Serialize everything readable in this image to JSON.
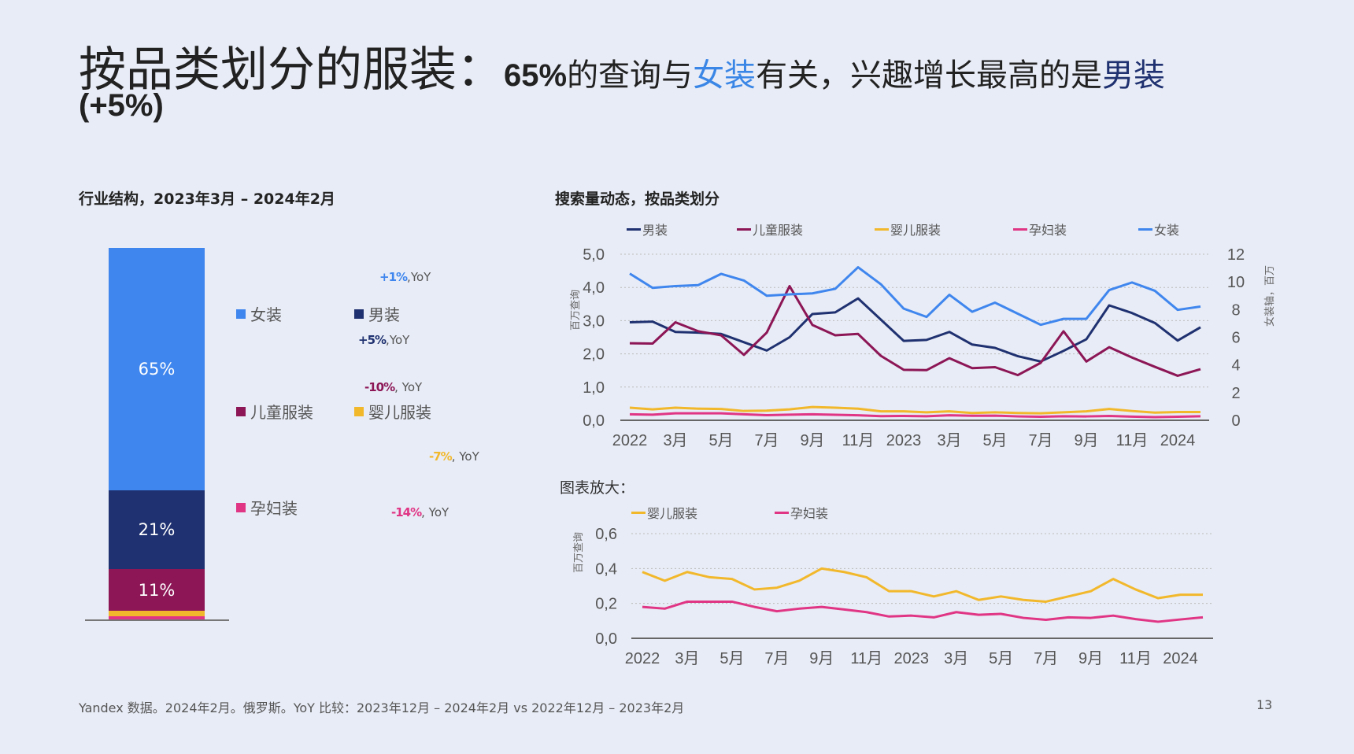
{
  "title": {
    "main": "按品类划分的服装：",
    "pct": "65%",
    "p1": "的查询与",
    "women": "女装",
    "p2": "有关，兴趣增长最高的是",
    "men": "男装",
    "growth": "(+5%)"
  },
  "left": {
    "subtitle": "行业结构，2023年3月 – 2024年2月"
  },
  "right": {
    "subtitle": "搜索量动态，按品类划分",
    "zoom_title": "图表放大："
  },
  "colors": {
    "women": "#3f86ee",
    "men": "#1f3170",
    "children": "#8c1656",
    "baby": "#f2b82c",
    "maternity": "#e03585"
  },
  "chart_data": [
    {
      "type": "bar",
      "stacked": true,
      "segments": [
        {
          "name": "女装",
          "value": 65,
          "label": "65%",
          "yoy_value": "+1%",
          "yoy_suffix": ",YoY"
        },
        {
          "name": "男装",
          "value": 21,
          "label": "21%",
          "yoy_value": "+5%",
          "yoy_suffix": ",YoY"
        },
        {
          "name": "儿童服装",
          "value": 11,
          "label": "11%",
          "yoy_value": "-10%",
          "yoy_suffix": ", YoY"
        },
        {
          "name": "婴儿服装",
          "value": 1.8,
          "label": "",
          "yoy_value": "-7%",
          "yoy_suffix": ", YoY"
        },
        {
          "name": "孕妇装",
          "value": 1.2,
          "label": "",
          "yoy_value": "-14%",
          "yoy_suffix": ", YoY"
        }
      ]
    },
    {
      "type": "line",
      "ylabel": "百万查询",
      "y2label": "女装轴，百万",
      "ylim": [
        0,
        5
      ],
      "yticks": [
        "0,0",
        "1,0",
        "2,0",
        "3,0",
        "4,0",
        "5,0"
      ],
      "y2lim": [
        0,
        12
      ],
      "y2ticks": [
        "0",
        "2",
        "4",
        "6",
        "8",
        "10",
        "12"
      ],
      "xticks": [
        "2022",
        "3月",
        "5月",
        "7月",
        "9月",
        "11月",
        "2023",
        "3月",
        "5月",
        "7月",
        "9月",
        "11月",
        "2024"
      ],
      "grid": true,
      "legend": "top",
      "series": [
        {
          "name": "男装",
          "axis": "left",
          "values": [
            2.95,
            2.97,
            2.66,
            2.64,
            2.6,
            2.35,
            2.1,
            2.5,
            3.2,
            3.25,
            3.67,
            3.03,
            2.39,
            2.42,
            2.66,
            2.28,
            2.18,
            1.93,
            1.77,
            2.09,
            2.44,
            3.46,
            3.23,
            2.93,
            2.4,
            2.8
          ]
        },
        {
          "name": "儿童服装",
          "axis": "left",
          "values": [
            2.32,
            2.31,
            2.95,
            2.68,
            2.56,
            1.97,
            2.64,
            4.04,
            2.87,
            2.56,
            2.6,
            1.94,
            1.52,
            1.51,
            1.87,
            1.57,
            1.6,
            1.36,
            1.73,
            2.68,
            1.77,
            2.2,
            1.89,
            1.61,
            1.34,
            1.54
          ]
        },
        {
          "name": "婴儿服装",
          "axis": "left",
          "values": [
            0.38,
            0.33,
            0.38,
            0.35,
            0.34,
            0.28,
            0.29,
            0.33,
            0.4,
            0.38,
            0.35,
            0.27,
            0.27,
            0.24,
            0.27,
            0.22,
            0.24,
            0.22,
            0.21,
            0.24,
            0.27,
            0.34,
            0.28,
            0.23,
            0.25,
            0.25
          ]
        },
        {
          "name": "孕妇装",
          "axis": "left",
          "values": [
            0.18,
            0.17,
            0.21,
            0.21,
            0.21,
            0.18,
            0.155,
            0.17,
            0.18,
            0.165,
            0.15,
            0.125,
            0.13,
            0.12,
            0.15,
            0.135,
            0.14,
            0.117,
            0.106,
            0.12,
            0.117,
            0.13,
            0.11,
            0.095,
            0.108,
            0.12
          ]
        },
        {
          "name": "女装",
          "axis": "right",
          "values": [
            10.6,
            9.57,
            9.7,
            9.77,
            10.58,
            10.1,
            9.0,
            9.1,
            9.17,
            9.5,
            11.06,
            9.83,
            8.07,
            7.47,
            9.07,
            7.84,
            8.5,
            7.7,
            6.9,
            7.33,
            7.33,
            9.41,
            9.96,
            9.36,
            7.98,
            8.22
          ]
        }
      ]
    },
    {
      "type": "line",
      "ylabel": "百万查询",
      "ylim": [
        0,
        0.6
      ],
      "yticks": [
        "0,0",
        "0,2",
        "0,4",
        "0,6"
      ],
      "xticks": [
        "2022",
        "3月",
        "5月",
        "7月",
        "9月",
        "11月",
        "2023",
        "3月",
        "5月",
        "7月",
        "9月",
        "11月",
        "2024"
      ],
      "grid": true,
      "legend": "top",
      "series": [
        {
          "name": "婴儿服装",
          "values": [
            0.38,
            0.33,
            0.38,
            0.35,
            0.34,
            0.28,
            0.29,
            0.33,
            0.4,
            0.38,
            0.35,
            0.27,
            0.27,
            0.24,
            0.27,
            0.22,
            0.24,
            0.22,
            0.21,
            0.24,
            0.27,
            0.34,
            0.28,
            0.23,
            0.25,
            0.25
          ]
        },
        {
          "name": "孕妇装",
          "values": [
            0.18,
            0.17,
            0.21,
            0.21,
            0.21,
            0.18,
            0.155,
            0.17,
            0.18,
            0.165,
            0.15,
            0.125,
            0.13,
            0.12,
            0.15,
            0.135,
            0.14,
            0.117,
            0.106,
            0.12,
            0.117,
            0.13,
            0.11,
            0.095,
            0.108,
            0.12
          ]
        }
      ]
    }
  ],
  "footer": {
    "source": "Yandex 数据。2024年2月。俄罗斯。YoY 比较：2023年12月 – 2024年2月 vs 2022年12月 – 2023年2月",
    "page": "13"
  }
}
